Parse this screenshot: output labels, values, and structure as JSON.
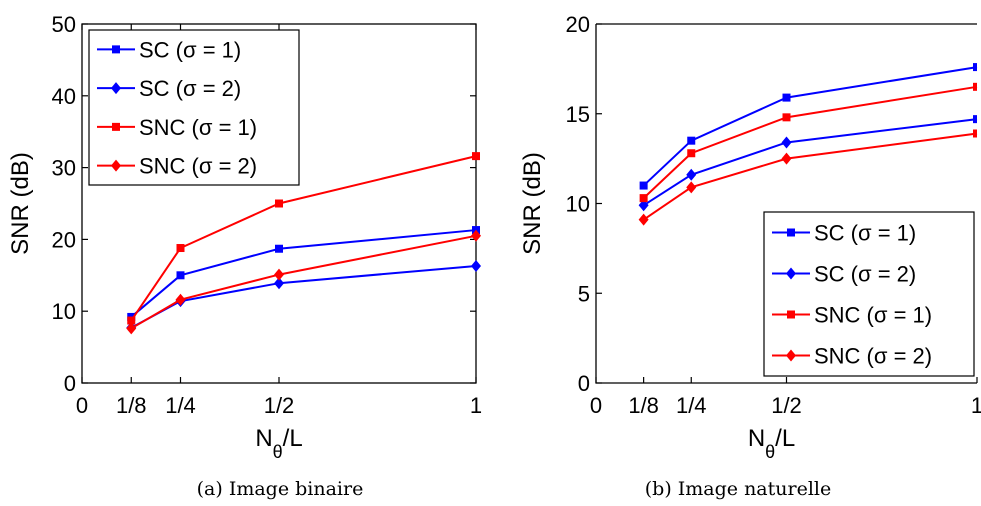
{
  "chart_data": [
    {
      "type": "line",
      "caption": "(a) Image binaire",
      "xlabel_main": "N",
      "xlabel_sub": "θ",
      "xlabel_tail": "/L",
      "ylabel": "SNR (dB)",
      "xlim": [
        0,
        1
      ],
      "ylim": [
        0,
        50
      ],
      "xticks": [
        0,
        0.125,
        0.25,
        0.5,
        1
      ],
      "xtick_labels": [
        "0",
        "1/8",
        "1/4",
        "1/2",
        "1"
      ],
      "yticks": [
        0,
        10,
        20,
        30,
        40,
        50
      ],
      "ytick_labels": [
        "0",
        "10",
        "20",
        "30",
        "40",
        "50"
      ],
      "legend_position": "top-left",
      "x": [
        0.125,
        0.25,
        0.5,
        1
      ],
      "series": [
        {
          "name": "SC (σ = 1)",
          "marker": "square",
          "color": "#0000ff",
          "values": [
            9.2,
            15.0,
            18.7,
            21.3
          ]
        },
        {
          "name": "SC (σ = 2)",
          "marker": "diamond",
          "color": "#0000ff",
          "values": [
            7.7,
            11.4,
            13.9,
            16.3
          ]
        },
        {
          "name": "SNC (σ = 1)",
          "marker": "square",
          "color": "#ff0000",
          "values": [
            8.7,
            18.8,
            25.0,
            31.6
          ]
        },
        {
          "name": "SNC (σ = 2)",
          "marker": "diamond",
          "color": "#ff0000",
          "values": [
            7.6,
            11.6,
            15.1,
            20.5
          ]
        }
      ]
    },
    {
      "type": "line",
      "caption": "(b) Image naturelle",
      "xlabel_main": "N",
      "xlabel_sub": "θ",
      "xlabel_tail": "/L",
      "ylabel": "SNR (dB)",
      "xlim": [
        0,
        1
      ],
      "ylim": [
        0,
        20
      ],
      "xticks": [
        0,
        0.125,
        0.25,
        0.5,
        1
      ],
      "xtick_labels": [
        "0",
        "1/8",
        "1/4",
        "1/2",
        "1"
      ],
      "yticks": [
        0,
        5,
        10,
        15,
        20
      ],
      "ytick_labels": [
        "0",
        "5",
        "10",
        "15",
        "20"
      ],
      "legend_position": "bottom-right",
      "x": [
        0.125,
        0.25,
        0.5,
        1
      ],
      "series": [
        {
          "name": "SC (σ = 1)",
          "marker": "square",
          "color": "#0000ff",
          "values": [
            11.0,
            13.5,
            15.9,
            17.6
          ]
        },
        {
          "name": "SC (σ = 2)",
          "marker": "diamond",
          "color": "#0000ff",
          "values": [
            9.9,
            11.6,
            13.4,
            14.7
          ]
        },
        {
          "name": "SNC (σ = 1)",
          "marker": "square",
          "color": "#ff0000",
          "values": [
            10.3,
            12.8,
            14.8,
            16.5
          ]
        },
        {
          "name": "SNC (σ = 2)",
          "marker": "diamond",
          "color": "#ff0000",
          "values": [
            9.1,
            10.9,
            12.5,
            13.9
          ]
        }
      ]
    }
  ]
}
